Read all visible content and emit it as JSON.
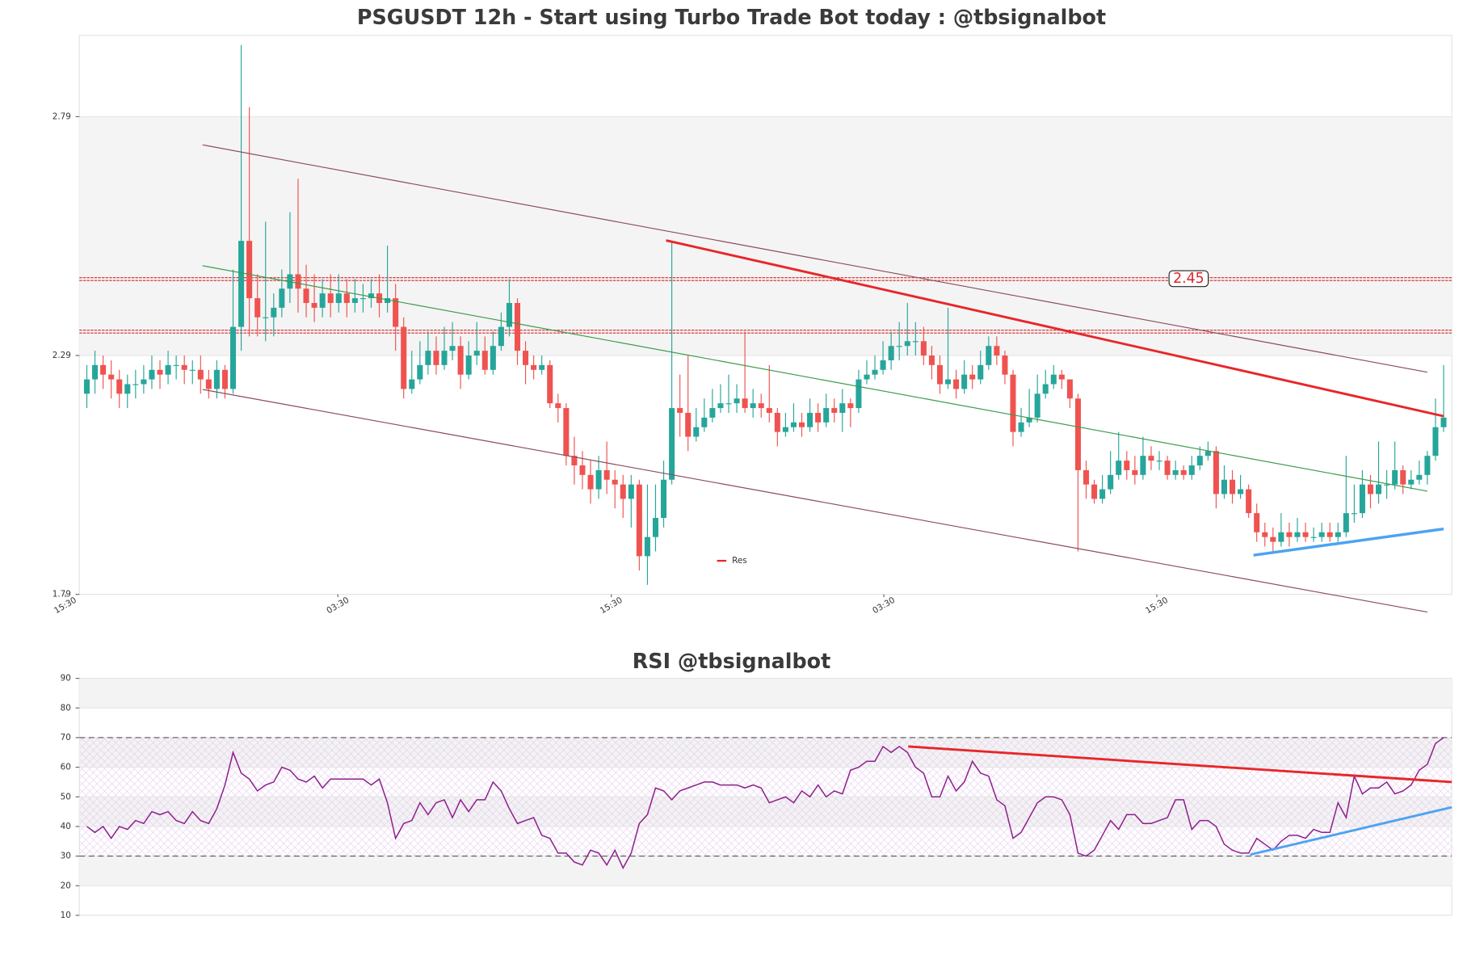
{
  "chart_data": [
    {
      "type": "candlestick",
      "title": "PSGUSDT 12h - Start using Turbo Trade Bot today : @tbsignalbot",
      "up_color": "#26a69a",
      "down_color": "#ef5350",
      "open": [
        2.21,
        2.24,
        2.27,
        2.25,
        2.24,
        2.21,
        2.23,
        2.23,
        2.24,
        2.26,
        2.25,
        2.27,
        2.27,
        2.26,
        2.26,
        2.24,
        2.22,
        2.26,
        2.22,
        2.35,
        2.53,
        2.41,
        2.37,
        2.37,
        2.39,
        2.43,
        2.46,
        2.43,
        2.4,
        2.39,
        2.42,
        2.4,
        2.42,
        2.4,
        2.41,
        2.41,
        2.42,
        2.4,
        2.41,
        2.35,
        2.22,
        2.24,
        2.27,
        2.3,
        2.27,
        2.3,
        2.31,
        2.25,
        2.29,
        2.3,
        2.26,
        2.31,
        2.35,
        2.4,
        2.3,
        2.27,
        2.26,
        2.27,
        2.19,
        2.18,
        2.08,
        2.06,
        2.04,
        2.01,
        2.05,
        2.03,
        2.02,
        1.99,
        2.02,
        1.87,
        1.91,
        1.95,
        2.03,
        2.18,
        2.17,
        2.12,
        2.14,
        2.16,
        2.18,
        2.19,
        2.19,
        2.2,
        2.18,
        2.19,
        2.18,
        2.17,
        2.13,
        2.14,
        2.15,
        2.14,
        2.17,
        2.15,
        2.18,
        2.17,
        2.19,
        2.18,
        2.24,
        2.25,
        2.26,
        2.28,
        2.31,
        2.31,
        2.32,
        2.32,
        2.29,
        2.27,
        2.23,
        2.24,
        2.22,
        2.25,
        2.24,
        2.27,
        2.31,
        2.29,
        2.25,
        2.13,
        2.15,
        2.16,
        2.21,
        2.23,
        2.25,
        2.24,
        2.2,
        2.05,
        2.02,
        1.99,
        2.01,
        2.04,
        2.07,
        2.05,
        2.04,
        2.08,
        2.07,
        2.07,
        2.04,
        2.05,
        2.04,
        2.06,
        2.08,
        2.09,
        2.0,
        2.03,
        2.0,
        2.01,
        1.96,
        1.92,
        1.91,
        1.9,
        1.92,
        1.91,
        1.92,
        1.91,
        1.91,
        1.92,
        1.91,
        1.92,
        1.96,
        1.96,
        2.02,
        2.0,
        2.02,
        2.02,
        2.05,
        2.02,
        2.03,
        2.04,
        2.08,
        2.14
      ],
      "high": [
        2.27,
        2.3,
        2.29,
        2.28,
        2.26,
        2.25,
        2.26,
        2.27,
        2.29,
        2.28,
        2.3,
        2.29,
        2.29,
        2.28,
        2.29,
        2.26,
        2.28,
        2.27,
        2.47,
        2.94,
        2.81,
        2.46,
        2.57,
        2.42,
        2.47,
        2.59,
        2.66,
        2.48,
        2.46,
        2.45,
        2.46,
        2.46,
        2.45,
        2.45,
        2.44,
        2.45,
        2.46,
        2.52,
        2.44,
        2.37,
        2.3,
        2.32,
        2.34,
        2.33,
        2.35,
        2.36,
        2.33,
        2.32,
        2.36,
        2.33,
        2.34,
        2.38,
        2.45,
        2.41,
        2.32,
        2.29,
        2.29,
        2.28,
        2.21,
        2.19,
        2.12,
        2.09,
        2.07,
        2.08,
        2.11,
        2.05,
        2.04,
        2.04,
        2.03,
        2.02,
        2.02,
        2.07,
        2.53,
        2.25,
        2.29,
        2.18,
        2.2,
        2.22,
        2.23,
        2.25,
        2.23,
        2.34,
        2.22,
        2.21,
        2.27,
        2.18,
        2.17,
        2.19,
        2.17,
        2.2,
        2.19,
        2.21,
        2.2,
        2.22,
        2.2,
        2.26,
        2.28,
        2.29,
        2.32,
        2.34,
        2.36,
        2.4,
        2.36,
        2.35,
        2.31,
        2.29,
        2.39,
        2.26,
        2.28,
        2.27,
        2.3,
        2.33,
        2.33,
        2.3,
        2.26,
        2.18,
        2.22,
        2.25,
        2.26,
        2.27,
        2.26,
        2.24,
        2.21,
        2.07,
        2.03,
        2.04,
        2.09,
        2.13,
        2.09,
        2.08,
        2.12,
        2.1,
        2.09,
        2.08,
        2.07,
        2.06,
        2.08,
        2.1,
        2.11,
        2.1,
        2.06,
        2.05,
        2.04,
        2.02,
        1.98,
        1.94,
        1.93,
        1.96,
        1.94,
        1.95,
        1.94,
        1.93,
        1.94,
        1.94,
        1.94,
        2.08,
        2.02,
        2.05,
        2.04,
        2.11,
        2.05,
        2.11,
        2.06,
        2.05,
        2.07,
        2.09,
        2.2,
        2.27
      ],
      "low": [
        2.18,
        2.21,
        2.22,
        2.2,
        2.18,
        2.18,
        2.2,
        2.21,
        2.22,
        2.22,
        2.23,
        2.24,
        2.23,
        2.23,
        2.21,
        2.2,
        2.2,
        2.2,
        2.21,
        2.3,
        2.33,
        2.33,
        2.32,
        2.33,
        2.37,
        2.4,
        2.38,
        2.37,
        2.36,
        2.37,
        2.37,
        2.38,
        2.37,
        2.38,
        2.38,
        2.39,
        2.37,
        2.38,
        2.3,
        2.2,
        2.21,
        2.23,
        2.25,
        2.25,
        2.26,
        2.28,
        2.22,
        2.24,
        2.27,
        2.25,
        2.25,
        2.3,
        2.33,
        2.27,
        2.23,
        2.24,
        2.25,
        2.18,
        2.15,
        2.06,
        2.02,
        2.01,
        1.98,
        1.99,
        2.0,
        1.97,
        1.95,
        1.93,
        1.84,
        1.81,
        1.88,
        1.93,
        2.02,
        2.12,
        2.09,
        2.11,
        2.13,
        2.15,
        2.17,
        2.17,
        2.17,
        2.17,
        2.16,
        2.16,
        2.15,
        2.1,
        2.12,
        2.13,
        2.12,
        2.13,
        2.13,
        2.14,
        2.15,
        2.13,
        2.14,
        2.17,
        2.23,
        2.24,
        2.25,
        2.26,
        2.28,
        2.29,
        2.29,
        2.27,
        2.24,
        2.21,
        2.22,
        2.2,
        2.21,
        2.22,
        2.23,
        2.26,
        2.27,
        2.23,
        2.1,
        2.12,
        2.14,
        2.15,
        2.2,
        2.22,
        2.22,
        2.18,
        1.88,
        1.99,
        1.98,
        1.98,
        2.0,
        2.03,
        2.03,
        2.02,
        2.03,
        2.05,
        2.05,
        2.03,
        2.03,
        2.03,
        2.03,
        2.05,
        2.07,
        1.97,
        1.99,
        1.98,
        1.99,
        1.95,
        1.9,
        1.89,
        1.88,
        1.89,
        1.89,
        1.9,
        1.9,
        1.9,
        1.9,
        1.9,
        1.9,
        1.91,
        1.94,
        1.95,
        1.97,
        1.98,
        1.99,
        2.01,
        2.0,
        2.01,
        2.02,
        2.02,
        2.07,
        2.13
      ],
      "close": [
        2.24,
        2.27,
        2.25,
        2.24,
        2.21,
        2.23,
        2.23,
        2.24,
        2.26,
        2.25,
        2.27,
        2.27,
        2.26,
        2.26,
        2.24,
        2.22,
        2.26,
        2.22,
        2.35,
        2.53,
        2.41,
        2.37,
        2.37,
        2.39,
        2.43,
        2.46,
        2.43,
        2.4,
        2.39,
        2.42,
        2.4,
        2.42,
        2.4,
        2.41,
        2.41,
        2.42,
        2.4,
        2.41,
        2.35,
        2.22,
        2.24,
        2.27,
        2.3,
        2.27,
        2.3,
        2.31,
        2.25,
        2.29,
        2.3,
        2.26,
        2.31,
        2.35,
        2.4,
        2.3,
        2.27,
        2.26,
        2.27,
        2.19,
        2.18,
        2.08,
        2.06,
        2.04,
        2.01,
        2.05,
        2.03,
        2.02,
        1.99,
        2.02,
        1.87,
        1.91,
        1.95,
        2.03,
        2.18,
        2.17,
        2.12,
        2.14,
        2.16,
        2.18,
        2.19,
        2.19,
        2.2,
        2.18,
        2.19,
        2.18,
        2.17,
        2.13,
        2.14,
        2.15,
        2.14,
        2.17,
        2.15,
        2.18,
        2.17,
        2.19,
        2.18,
        2.24,
        2.25,
        2.26,
        2.28,
        2.31,
        2.31,
        2.32,
        2.32,
        2.29,
        2.27,
        2.23,
        2.24,
        2.22,
        2.25,
        2.24,
        2.27,
        2.31,
        2.29,
        2.25,
        2.13,
        2.15,
        2.16,
        2.21,
        2.23,
        2.25,
        2.24,
        2.2,
        2.05,
        2.02,
        1.99,
        2.01,
        2.04,
        2.07,
        2.05,
        2.04,
        2.08,
        2.07,
        2.07,
        2.04,
        2.05,
        2.04,
        2.06,
        2.08,
        2.09,
        2.0,
        2.03,
        2.0,
        2.01,
        1.96,
        1.92,
        1.91,
        1.9,
        1.92,
        1.91,
        1.92,
        1.91,
        1.91,
        1.92,
        1.91,
        1.92,
        1.96,
        1.96,
        2.02,
        2.0,
        2.02,
        2.02,
        2.05,
        2.02,
        2.03,
        2.04,
        2.08,
        2.14,
        2.16
      ],
      "xlim": [
        -0.92,
        168
      ],
      "xticks": [
        {
          "value": -2.64,
          "label": "15:30"
        },
        {
          "value": 30.9,
          "label": "03:30"
        },
        {
          "value": 64.55,
          "label": "15:30"
        },
        {
          "value": 98.1,
          "label": "03:30"
        },
        {
          "value": 131.7,
          "label": "15:30"
        }
      ],
      "ylim": [
        1.79,
        2.96
      ],
      "yticks": [
        1.79,
        2.29,
        2.79
      ],
      "grid": true,
      "shade": [
        2.29,
        2.79
      ],
      "levels": [
        2.45,
        2.34
      ],
      "level_color": "#d62728",
      "lines": [
        {
          "color": "#8b4a5c",
          "width": 1,
          "x": [
            14.24,
            165.0
          ],
          "y": [
            2.731,
            2.255
          ]
        },
        {
          "color": "#8b4a5c",
          "width": 1,
          "x": [
            14.24,
            165.0
          ],
          "y": [
            2.219,
            1.753
          ]
        },
        {
          "color": "#3a9a4a",
          "width": 1,
          "x": [
            14.24,
            165.0
          ],
          "y": [
            2.478,
            2.006
          ]
        },
        {
          "name": "Res",
          "color": "#e8262a",
          "width": 2.5,
          "x": [
            71.3,
            167.0
          ],
          "y": [
            2.531,
            2.163
          ]
        },
        {
          "color": "#4da3f0",
          "width": 3,
          "x": [
            143.6,
            167.0
          ],
          "y": [
            1.872,
            1.927
          ]
        }
      ],
      "legend": "lower center"
    },
    {
      "type": "line",
      "title": "RSI @tbsignalbot",
      "series": [
        {
          "color": "#8e1f8e",
          "values": [
            40,
            38,
            40,
            36,
            40,
            39,
            42,
            41,
            45,
            44,
            45,
            42,
            41,
            45,
            42,
            41,
            46,
            54,
            65,
            58,
            56,
            52,
            54,
            55,
            60,
            59,
            56,
            55,
            57,
            53,
            56,
            56,
            56,
            56,
            56,
            54,
            56,
            48,
            36,
            41,
            42,
            48,
            44,
            48,
            49,
            43,
            49,
            45,
            49,
            49,
            55,
            52,
            46,
            41,
            42,
            43,
            37,
            36,
            31,
            31,
            28,
            27,
            32,
            31,
            27,
            32,
            26,
            31,
            41,
            44,
            53,
            52,
            49,
            52,
            53,
            54,
            55,
            55,
            54,
            54,
            54,
            53,
            54,
            53,
            48,
            49,
            50,
            48,
            52,
            50,
            54,
            50,
            52,
            51,
            59,
            60,
            62,
            62,
            67,
            65,
            67,
            65,
            60,
            58,
            50,
            50,
            57,
            52,
            55,
            62,
            58,
            57,
            49,
            47,
            36,
            38,
            43,
            48,
            50,
            50,
            49,
            44,
            31,
            30,
            32,
            37,
            42,
            39,
            44,
            44,
            41,
            41,
            42,
            43,
            49,
            49,
            39,
            42,
            42,
            40,
            34,
            32,
            31,
            31,
            36,
            34,
            32,
            35,
            37,
            37,
            36,
            39,
            38,
            38,
            48,
            43,
            57,
            51,
            53,
            53,
            55,
            51,
            52,
            54,
            59,
            61,
            68,
            70
          ]
        }
      ],
      "xlim": [
        -0.92,
        168
      ],
      "ylim": [
        10,
        90
      ],
      "yticks": [
        10,
        20,
        30,
        40,
        50,
        60,
        70,
        80,
        90
      ],
      "grid": true,
      "thresholds": [
        30,
        70
      ],
      "bands": [
        [
          20,
          30
        ],
        [
          40,
          50
        ],
        [
          60,
          70
        ],
        [
          80,
          90
        ]
      ],
      "lines": [
        {
          "color": "#e8262a",
          "width": 2.5,
          "x": [
            101.1,
            168.0
          ],
          "y": [
            67,
            55
          ]
        },
        {
          "color": "#4da3f0",
          "width": 2.5,
          "x": [
            143.2,
            168.0
          ],
          "y": [
            30.5,
            46.5
          ]
        }
      ]
    }
  ]
}
